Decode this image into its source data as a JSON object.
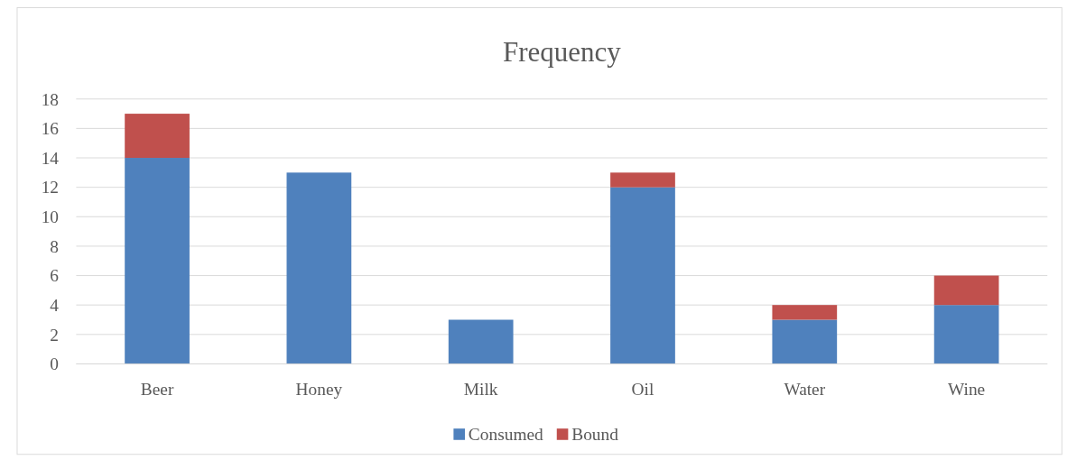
{
  "chart_data": {
    "type": "bar",
    "title": "Frequency",
    "stacked": true,
    "categories": [
      "Beer",
      "Honey",
      "Milk",
      "Oil",
      "Water",
      "Wine"
    ],
    "series": [
      {
        "name": "Consumed",
        "color": "#4f81bd",
        "values": [
          14,
          13,
          3,
          12,
          3,
          4
        ]
      },
      {
        "name": "Bound",
        "color": "#c0504d",
        "values": [
          3,
          0,
          0,
          1,
          1,
          2
        ]
      }
    ],
    "ylim": [
      0,
      18
    ],
    "yticks": [
      0,
      2,
      4,
      6,
      8,
      10,
      12,
      14,
      16,
      18
    ],
    "grid": "y",
    "legend": "bottom"
  }
}
